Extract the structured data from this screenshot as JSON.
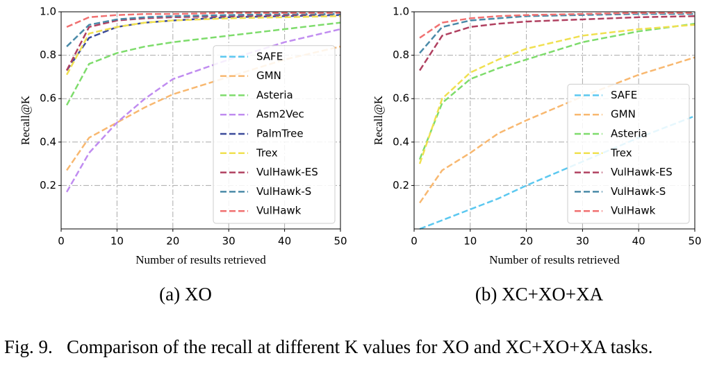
{
  "chart_data": [
    {
      "type": "line",
      "caption": "(a) XO",
      "xlabel": "Number of results retrieved",
      "ylabel": "Recall@K",
      "x": [
        1,
        5,
        10,
        15,
        20,
        30,
        40,
        50
      ],
      "xlim": [
        0,
        50
      ],
      "xticks": [
        0,
        10,
        20,
        30,
        40,
        50
      ],
      "ylim": [
        0,
        1
      ],
      "yticks": [
        0.2,
        0.4,
        0.6,
        0.8,
        {
          "value": 1,
          "label": "1.0"
        }
      ],
      "grid": true,
      "legend": "lower right",
      "series": [
        {
          "name": "SAFE",
          "color": "#5bc8f0",
          "values": [
            null,
            null,
            null,
            null,
            null,
            null,
            null,
            null
          ]
        },
        {
          "name": "GMN",
          "color": "#f8b870",
          "values": [
            0.27,
            0.42,
            0.49,
            0.56,
            0.62,
            0.7,
            0.78,
            0.84
          ]
        },
        {
          "name": "Asteria",
          "color": "#7edc6c",
          "values": [
            0.57,
            0.76,
            0.81,
            0.84,
            0.86,
            0.89,
            0.92,
            0.95
          ]
        },
        {
          "name": "Asm2Vec",
          "color": "#c08cf0",
          "values": [
            0.17,
            0.35,
            0.49,
            0.6,
            0.69,
            0.78,
            0.86,
            0.92
          ]
        },
        {
          "name": "PalmTree",
          "color": "#3b4a9a",
          "values": [
            0.73,
            0.88,
            0.93,
            0.95,
            0.96,
            0.975,
            0.98,
            0.985
          ]
        },
        {
          "name": "Trex",
          "color": "#f0e050",
          "values": [
            0.71,
            0.9,
            0.93,
            0.95,
            0.96,
            0.97,
            0.975,
            0.98
          ]
        },
        {
          "name": "VulHawk-ES",
          "color": "#b04060",
          "values": [
            0.73,
            0.93,
            0.96,
            0.97,
            0.975,
            0.98,
            0.985,
            0.99
          ]
        },
        {
          "name": "VulHawk-S",
          "color": "#4a8aa8",
          "values": [
            0.84,
            0.94,
            0.965,
            0.975,
            0.98,
            0.985,
            0.99,
            0.99
          ]
        },
        {
          "name": "VulHawk",
          "color": "#f07070",
          "values": [
            0.93,
            0.975,
            0.985,
            0.99,
            0.99,
            0.995,
            0.995,
            0.995
          ]
        }
      ]
    },
    {
      "type": "line",
      "caption": "(b) XC+XO+XA",
      "xlabel": "Number of results retrieved",
      "ylabel": "Recall@K",
      "x": [
        1,
        5,
        10,
        15,
        20,
        30,
        40,
        50
      ],
      "xlim": [
        0,
        50
      ],
      "xticks": [
        0,
        10,
        20,
        30,
        40,
        50
      ],
      "ylim": [
        0,
        1
      ],
      "yticks": [
        0.2,
        0.4,
        0.6,
        0.8,
        {
          "value": 1,
          "label": "1.0"
        }
      ],
      "grid": true,
      "legend": "lower right",
      "series": [
        {
          "name": "SAFE",
          "color": "#5bc8f0",
          "values": [
            0.0,
            0.04,
            0.09,
            0.14,
            0.2,
            0.31,
            0.42,
            0.52
          ]
        },
        {
          "name": "GMN",
          "color": "#f8b870",
          "values": [
            0.12,
            0.27,
            0.35,
            0.44,
            0.5,
            0.61,
            0.71,
            0.79
          ]
        },
        {
          "name": "Asteria",
          "color": "#7edc6c",
          "values": [
            0.32,
            0.58,
            0.69,
            0.74,
            0.78,
            0.86,
            0.91,
            0.945
          ]
        },
        {
          "name": "Trex",
          "color": "#f0e050",
          "values": [
            0.3,
            0.6,
            0.72,
            0.78,
            0.83,
            0.89,
            0.92,
            0.94
          ]
        },
        {
          "name": "VulHawk-ES",
          "color": "#b04060",
          "values": [
            0.73,
            0.89,
            0.93,
            0.945,
            0.955,
            0.965,
            0.975,
            0.98
          ]
        },
        {
          "name": "VulHawk-S",
          "color": "#4a8aa8",
          "values": [
            0.81,
            0.93,
            0.96,
            0.97,
            0.98,
            0.985,
            0.99,
            0.99
          ]
        },
        {
          "name": "VulHawk",
          "color": "#f07070",
          "values": [
            0.88,
            0.95,
            0.97,
            0.98,
            0.985,
            0.99,
            0.995,
            0.995
          ]
        }
      ]
    }
  ],
  "caption": "Fig. 9.   Comparison of the recall at different K values for XO and XC+XO+XA tasks."
}
